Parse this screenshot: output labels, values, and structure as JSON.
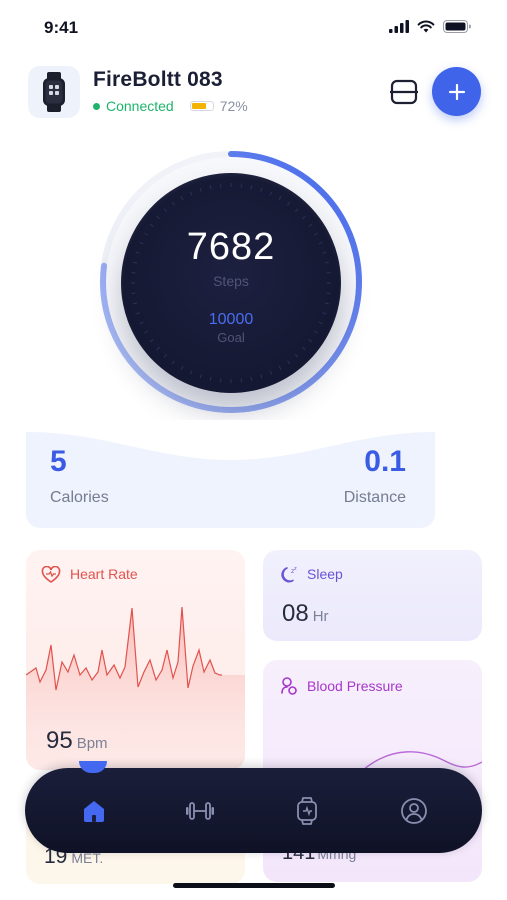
{
  "status_bar": {
    "time": "9:41"
  },
  "device": {
    "name": "FireBoltt 083",
    "status": "Connected",
    "battery_percent_text": "72%",
    "battery_level": 0.72
  },
  "steps": {
    "value": "7682",
    "label": "Steps",
    "goal_value": "10000",
    "goal_label": "Goal",
    "progress_fraction": 0.77
  },
  "summary": {
    "calories_value": "5",
    "calories_label": "Calories",
    "distance_value": "0.1",
    "distance_label": "Distance"
  },
  "tiles": {
    "heart_rate": {
      "title": "Heart Rate",
      "value": "95",
      "unit": "Bpm"
    },
    "sleep": {
      "title": "Sleep",
      "value": "08",
      "unit": "Hr"
    },
    "blood_pressure": {
      "title": "Blood Pressure",
      "value": "141",
      "unit": "Mmhg"
    },
    "activity": {
      "value": "19",
      "unit": "MET."
    }
  },
  "nav": {
    "items": [
      "home-icon",
      "dumbbell-icon",
      "watch-icon",
      "profile-icon"
    ],
    "active": "home-icon"
  },
  "colors": {
    "accent": "#3f63e9",
    "connected": "#1fb46b",
    "battery": "#f2b400",
    "heart": "#e2524e",
    "sleep": "#6b53d6",
    "blood_pressure": "#a637c9"
  }
}
